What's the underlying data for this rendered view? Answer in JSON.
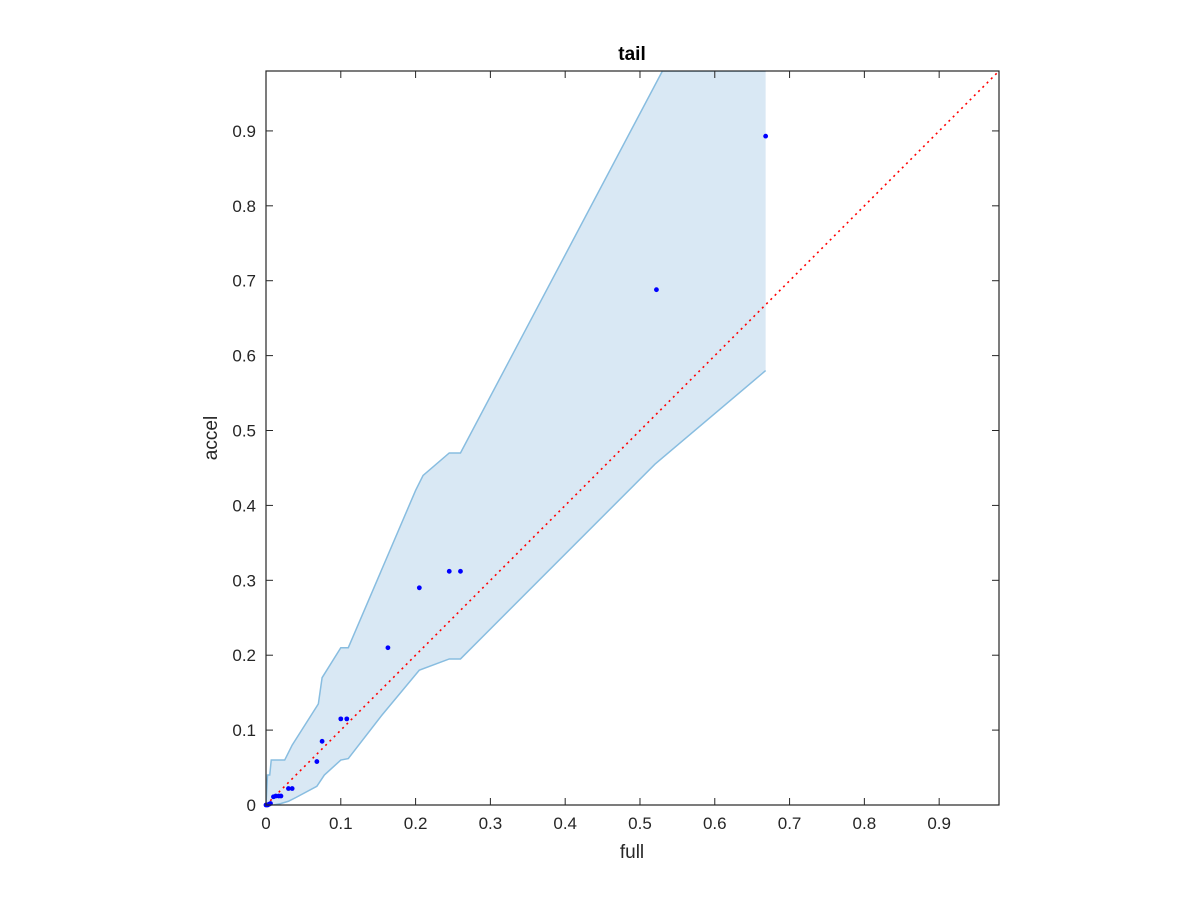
{
  "chart_data": {
    "type": "scatter",
    "title": "tail",
    "xlabel": "full",
    "ylabel": "accel",
    "xlim": [
      0,
      0.98
    ],
    "ylim": [
      0,
      0.98
    ],
    "x_ticks": [
      0,
      0.1,
      0.2,
      0.3,
      0.4,
      0.5,
      0.6,
      0.7,
      0.8,
      0.9
    ],
    "x_tick_labels": [
      "0",
      "0.1",
      "0.2",
      "0.3",
      "0.4",
      "0.5",
      "0.6",
      "0.7",
      "0.8",
      "0.9"
    ],
    "y_ticks": [
      0,
      0.1,
      0.2,
      0.3,
      0.4,
      0.5,
      0.6,
      0.7,
      0.8,
      0.9
    ],
    "y_tick_labels": [
      "0",
      "0.1",
      "0.2",
      "0.3",
      "0.4",
      "0.5",
      "0.6",
      "0.7",
      "0.8",
      "0.9"
    ],
    "grid": false,
    "points": {
      "color": "#0000ff",
      "x": [
        0.0,
        0.002,
        0.004,
        0.006,
        0.01,
        0.013,
        0.017,
        0.02,
        0.03,
        0.035,
        0.068,
        0.075,
        0.1,
        0.108,
        0.163,
        0.205,
        0.245,
        0.26,
        0.522,
        0.668
      ],
      "y": [
        0.0,
        0.0,
        0.001,
        0.002,
        0.011,
        0.012,
        0.012,
        0.012,
        0.022,
        0.022,
        0.058,
        0.085,
        0.115,
        0.115,
        0.21,
        0.29,
        0.312,
        0.312,
        0.688,
        0.893
      ]
    },
    "band": {
      "color": "#d9e8f4",
      "edge_color": "#88bde0",
      "upper_x": [
        0.0,
        0.002,
        0.003,
        0.005,
        0.007,
        0.025,
        0.03,
        0.035,
        0.07,
        0.075,
        0.1,
        0.11,
        0.2,
        0.21,
        0.245,
        0.26,
        0.53,
        0.668
      ],
      "upper_y": [
        0.0,
        0.04,
        0.04,
        0.04,
        0.06,
        0.06,
        0.07,
        0.08,
        0.135,
        0.17,
        0.21,
        0.21,
        0.42,
        0.44,
        0.47,
        0.47,
        0.98,
        0.98
      ],
      "lower_x": [
        0.668,
        0.52,
        0.26,
        0.245,
        0.205,
        0.155,
        0.11,
        0.1,
        0.078,
        0.068,
        0.04,
        0.03,
        0.02,
        0.01,
        0.0
      ],
      "lower_y": [
        0.58,
        0.455,
        0.195,
        0.195,
        0.18,
        0.12,
        0.062,
        0.06,
        0.04,
        0.025,
        0.01,
        0.005,
        0.002,
        0.0,
        0.0
      ]
    },
    "reference_line": {
      "x": [
        0,
        0.98
      ],
      "y": [
        0,
        0.98
      ],
      "color": "#ff0000",
      "style": "dotted"
    }
  }
}
